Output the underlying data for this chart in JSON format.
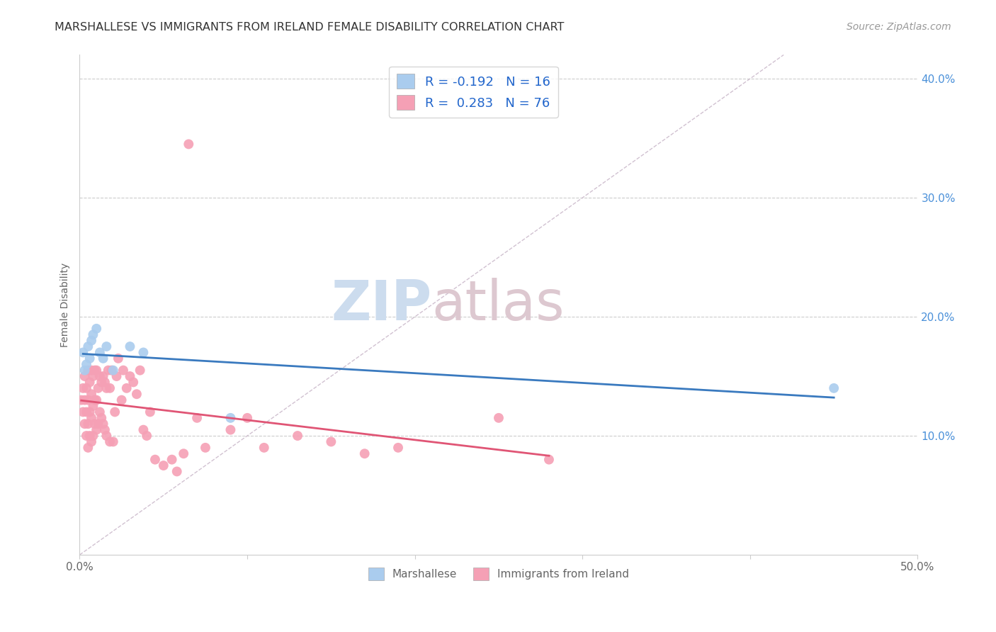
{
  "title": "MARSHALLESE VS IMMIGRANTS FROM IRELAND FEMALE DISABILITY CORRELATION CHART",
  "source": "Source: ZipAtlas.com",
  "ylabel": "Female Disability",
  "xlim": [
    0.0,
    0.5
  ],
  "ylim": [
    0.0,
    0.42
  ],
  "xticks": [
    0.0,
    0.1,
    0.2,
    0.3,
    0.4,
    0.5
  ],
  "xticklabels": [
    "0.0%",
    "",
    "",
    "",
    "",
    "50.0%"
  ],
  "ytick_positions": [
    0.1,
    0.2,
    0.3,
    0.4
  ],
  "right_ytick_labels": [
    "10.0%",
    "20.0%",
    "30.0%",
    "40.0%"
  ],
  "marshallese_color": "#aaccee",
  "ireland_color": "#f5a0b5",
  "marshallese_line_color": "#3a7abf",
  "ireland_line_color": "#e05575",
  "diag_color": "#ccbbcc",
  "legend_R1": "-0.192",
  "legend_N1": "16",
  "legend_R2": "0.283",
  "legend_N2": "76",
  "marsh_x": [
    0.002,
    0.003,
    0.004,
    0.005,
    0.006,
    0.007,
    0.008,
    0.01,
    0.012,
    0.014,
    0.016,
    0.02,
    0.03,
    0.038,
    0.09,
    0.45
  ],
  "marsh_y": [
    0.17,
    0.155,
    0.16,
    0.175,
    0.165,
    0.18,
    0.185,
    0.19,
    0.17,
    0.165,
    0.175,
    0.155,
    0.175,
    0.17,
    0.115,
    0.14
  ],
  "ire_x": [
    0.001,
    0.002,
    0.002,
    0.003,
    0.003,
    0.003,
    0.004,
    0.004,
    0.004,
    0.005,
    0.005,
    0.005,
    0.005,
    0.006,
    0.006,
    0.006,
    0.007,
    0.007,
    0.007,
    0.007,
    0.008,
    0.008,
    0.008,
    0.009,
    0.009,
    0.009,
    0.01,
    0.01,
    0.01,
    0.011,
    0.011,
    0.012,
    0.012,
    0.013,
    0.013,
    0.014,
    0.014,
    0.015,
    0.015,
    0.016,
    0.016,
    0.017,
    0.018,
    0.018,
    0.019,
    0.02,
    0.021,
    0.022,
    0.023,
    0.025,
    0.026,
    0.028,
    0.03,
    0.032,
    0.034,
    0.036,
    0.038,
    0.04,
    0.042,
    0.045,
    0.05,
    0.055,
    0.058,
    0.062,
    0.065,
    0.07,
    0.075,
    0.09,
    0.1,
    0.11,
    0.13,
    0.15,
    0.17,
    0.19,
    0.25,
    0.28
  ],
  "ire_y": [
    0.13,
    0.12,
    0.14,
    0.11,
    0.13,
    0.15,
    0.1,
    0.12,
    0.14,
    0.09,
    0.11,
    0.13,
    0.155,
    0.1,
    0.12,
    0.145,
    0.095,
    0.115,
    0.135,
    0.155,
    0.1,
    0.125,
    0.15,
    0.11,
    0.13,
    0.155,
    0.105,
    0.13,
    0.155,
    0.11,
    0.14,
    0.12,
    0.15,
    0.115,
    0.145,
    0.11,
    0.15,
    0.105,
    0.145,
    0.1,
    0.14,
    0.155,
    0.095,
    0.14,
    0.155,
    0.095,
    0.12,
    0.15,
    0.165,
    0.13,
    0.155,
    0.14,
    0.15,
    0.145,
    0.135,
    0.155,
    0.105,
    0.1,
    0.12,
    0.08,
    0.075,
    0.08,
    0.07,
    0.085,
    0.345,
    0.115,
    0.09,
    0.105,
    0.115,
    0.09,
    0.1,
    0.095,
    0.085,
    0.09,
    0.115,
    0.08
  ],
  "watermark_zip_color": "#ccdcee",
  "watermark_atlas_color": "#ddc8d0"
}
